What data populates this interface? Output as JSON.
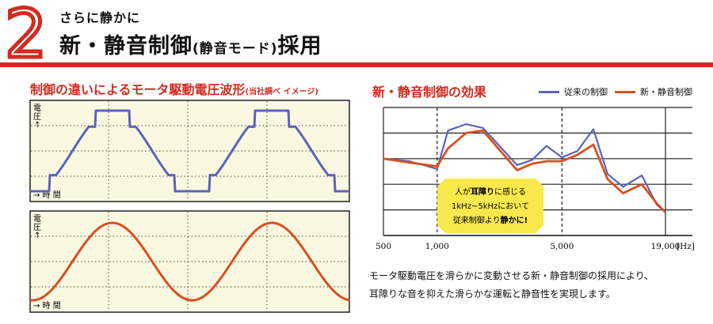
{
  "header": {
    "number": "2",
    "subtitle": "さらに静かに",
    "title_main": "新・静音制御",
    "title_paren": "(静音モード)",
    "title_end": "採用"
  },
  "colors": {
    "accent": "#d42a1f",
    "conventional": "#5c63b8",
    "new": "#d9501e",
    "panel_bg": "#fbf8e2",
    "badge_bg": "#f9e84c"
  },
  "left": {
    "title": "制御の違いによるモータ駆動電圧波形",
    "note": "(当社調べ イメージ)",
    "y_label_1": "電",
    "y_label_2": "圧",
    "y_arrow": "↑",
    "x_label": "→ 時 間"
  },
  "right": {
    "title": "新・静音制御の効果",
    "legend": [
      {
        "name": "従来の制御",
        "color": "#5c63b8"
      },
      {
        "name": "新・静音制御",
        "color": "#d9501e"
      }
    ],
    "badge_lines": [
      "人が",
      "耳障り",
      "に感じる",
      "1kHz~5kHzにおいて",
      "従来制御より",
      "静かに!"
    ]
  },
  "description": {
    "line1": "モータ駆動電圧を滑らかに変動させる新・静音制御の採用により、",
    "line2": "耳障りな音を抑えた滑らかな運転と静音性を実現します。"
  },
  "chart_data": [
    {
      "type": "line",
      "title": "制御の違いによるモータ駆動電圧波形",
      "ylabel": "電圧",
      "xlabel": "時間",
      "series": [
        {
          "name": "従来の制御",
          "shape": "stepped sine (square-topped)"
        }
      ],
      "cycles": 2
    },
    {
      "type": "line",
      "ylabel": "電圧",
      "xlabel": "時間",
      "series": [
        {
          "name": "新・静音制御",
          "shape": "smooth sine"
        }
      ],
      "cycles": 2
    },
    {
      "type": "line",
      "title": "新・静音制御の効果",
      "x_ticks": [
        "500",
        "1,000",
        "5,000",
        "19,000"
      ],
      "x_unit": "[Hz]",
      "x_tick_positions": [
        500,
        1000,
        5000,
        19000
      ],
      "x": [
        500,
        700,
        1000,
        1150,
        1450,
        1800,
        2200,
        2800,
        3400,
        4100,
        5000,
        6100,
        7500,
        9000,
        11000,
        14000,
        17000,
        19000
      ],
      "grid": true,
      "series": [
        {
          "name": "従来の制御",
          "values": [
            6.0,
            5.8,
            5.2,
            8.2,
            8.7,
            8.4,
            7.1,
            5.5,
            5.9,
            7.0,
            6.1,
            6.6,
            8.3,
            4.8,
            3.8,
            4.7,
            2.4,
            1.8
          ]
        },
        {
          "name": "新・静音制御",
          "values": [
            6.0,
            5.7,
            5.4,
            6.8,
            8.0,
            8.2,
            6.8,
            5.1,
            5.6,
            5.8,
            5.8,
            6.3,
            7.1,
            4.4,
            3.3,
            4.0,
            2.5,
            1.8
          ]
        }
      ]
    }
  ]
}
